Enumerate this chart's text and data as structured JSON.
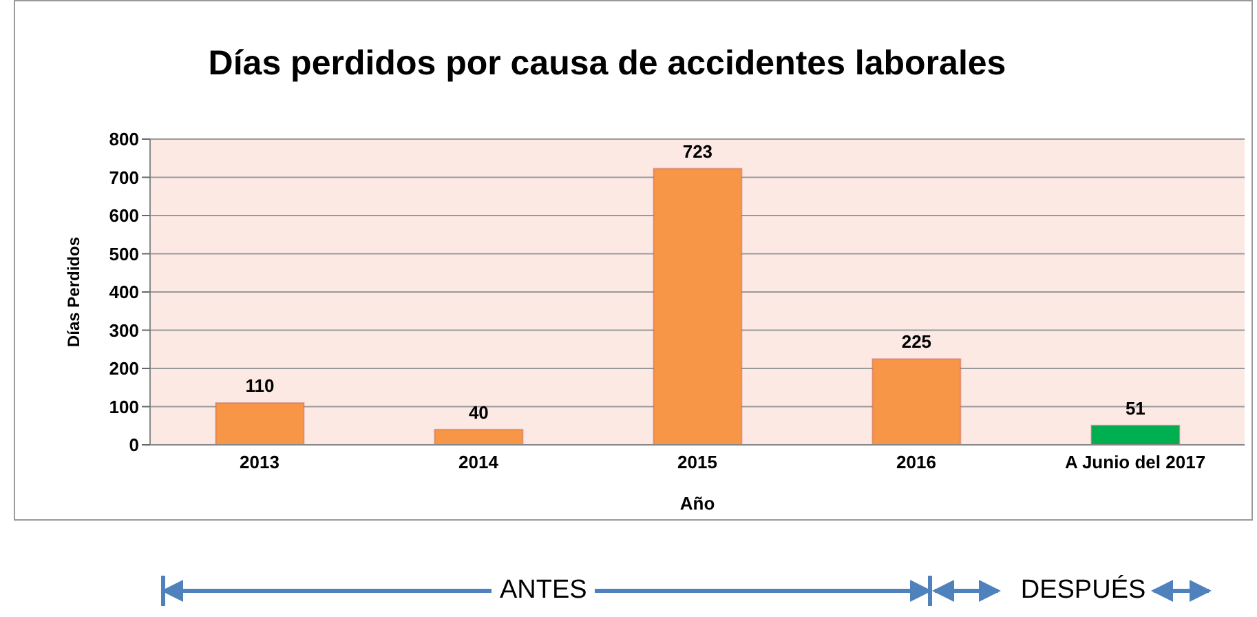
{
  "chart_data": {
    "type": "bar",
    "title": "Días perdidos por causa de accidentes laborales",
    "xlabel": "Año",
    "ylabel": "Días Perdidos",
    "categories": [
      "2013",
      "2014",
      "2015",
      "2016",
      "A Junio del 2017"
    ],
    "values": [
      110,
      40,
      723,
      225,
      51
    ],
    "colors": [
      "#f79646",
      "#f79646",
      "#f79646",
      "#f79646",
      "#00b050"
    ],
    "ylim": [
      0,
      800
    ],
    "yticks": [
      0,
      100,
      200,
      300,
      400,
      500,
      600,
      700,
      800
    ],
    "grid": "y",
    "data_labels": true,
    "annotations": [
      "ANTES",
      "DESPUÉS"
    ]
  }
}
